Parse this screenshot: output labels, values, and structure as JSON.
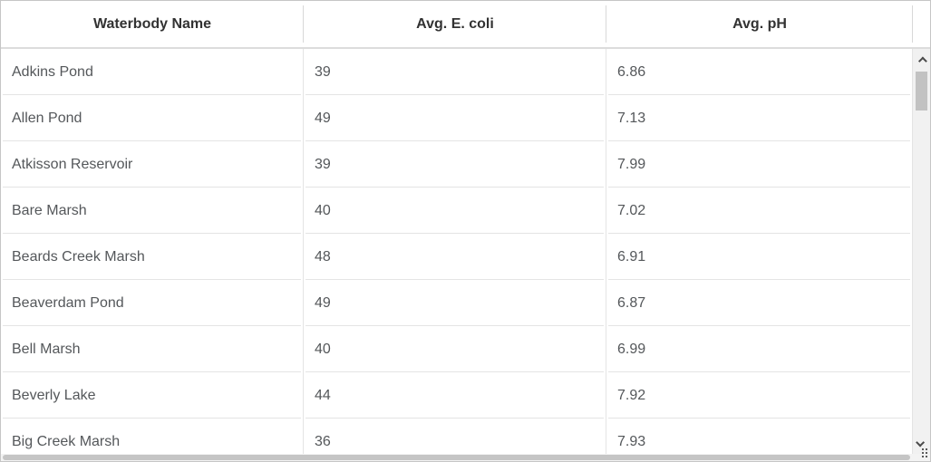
{
  "table": {
    "columns": [
      {
        "key": "name",
        "label": "Waterbody Name"
      },
      {
        "key": "ecoli",
        "label": "Avg. E. coli"
      },
      {
        "key": "ph",
        "label": "Avg. pH"
      }
    ],
    "rows": [
      {
        "name": "Adkins Pond",
        "ecoli": "39",
        "ph": "6.86"
      },
      {
        "name": "Allen Pond",
        "ecoli": "49",
        "ph": "7.13"
      },
      {
        "name": "Atkisson Reservoir",
        "ecoli": "39",
        "ph": "7.99"
      },
      {
        "name": "Bare Marsh",
        "ecoli": "40",
        "ph": "7.02"
      },
      {
        "name": "Beards Creek Marsh",
        "ecoli": "48",
        "ph": "6.91"
      },
      {
        "name": "Beaverdam Pond",
        "ecoli": "49",
        "ph": "6.87"
      },
      {
        "name": "Bell Marsh",
        "ecoli": "40",
        "ph": "6.99"
      },
      {
        "name": "Beverly Lake",
        "ecoli": "44",
        "ph": "7.92"
      },
      {
        "name": "Big Creek Marsh",
        "ecoli": "36",
        "ph": "7.93"
      }
    ]
  },
  "icons": {
    "scroll_up": "chevron-up-icon",
    "scroll_down": "chevron-down-icon",
    "resize_grip": "dot-grid-grip-icon"
  },
  "colors": {
    "header_text": "#323232",
    "body_text": "#54575a",
    "row_border": "#e4e4e4",
    "header_border": "#d8d8d8",
    "outer_border": "#c6c6c6",
    "scrollbar_track": "#f1f1f1",
    "scrollbar_thumb": "#c2c2c2"
  }
}
